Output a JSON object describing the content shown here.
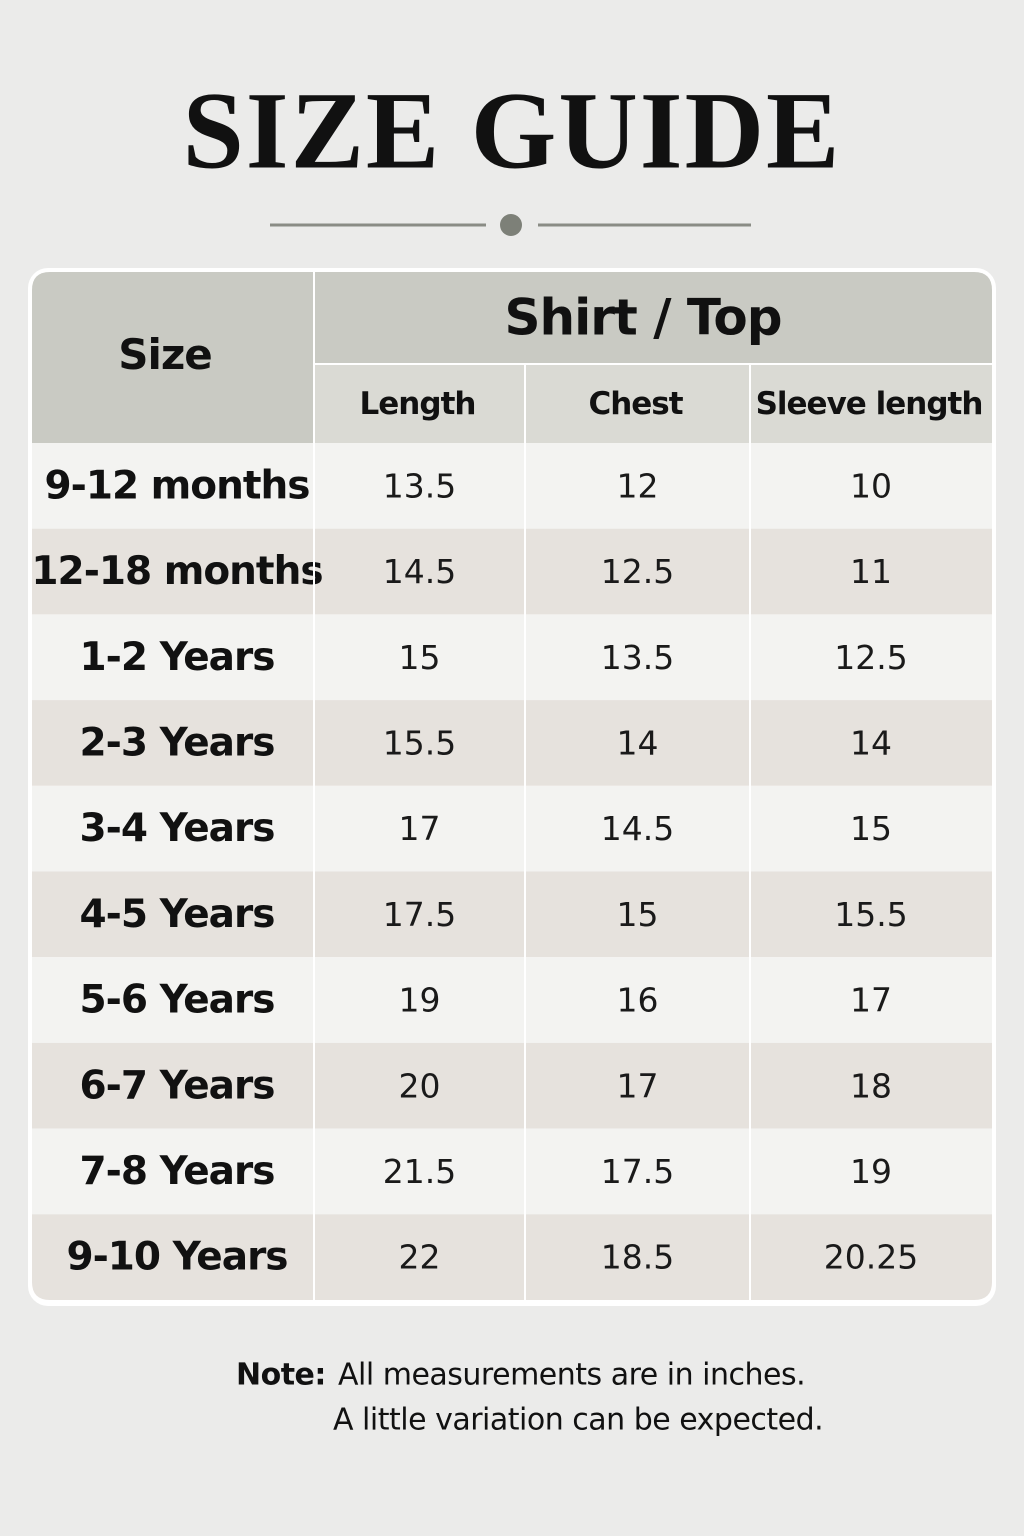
{
  "header": {
    "title": "SIZE GUIDE"
  },
  "table": {
    "size_header": "Size",
    "group_header": "Shirt / Top",
    "columns": [
      "Length",
      "Chest",
      "Sleeve length"
    ],
    "rows": [
      [
        "9-12 months",
        13.5,
        12,
        10
      ],
      [
        "12-18 months",
        14.5,
        12.5,
        11
      ],
      [
        "1-2 Years",
        15,
        13.5,
        12.5
      ],
      [
        "2-3 Years",
        15.5,
        14,
        14
      ],
      [
        "3-4 Years",
        17,
        14.5,
        15
      ],
      [
        "4-5 Years",
        17.5,
        15,
        15.5
      ],
      [
        "5-6 Years",
        19,
        16,
        17
      ],
      [
        "6-7 Years",
        20,
        17,
        18
      ],
      [
        "7-8 Years",
        21.5,
        17.5,
        19
      ],
      [
        "9-10 Years",
        22,
        18.5,
        20.25
      ]
    ]
  },
  "note": {
    "label": "Note:",
    "lines": [
      "All measurements are in inches.",
      "A little variation can be expected."
    ]
  }
}
